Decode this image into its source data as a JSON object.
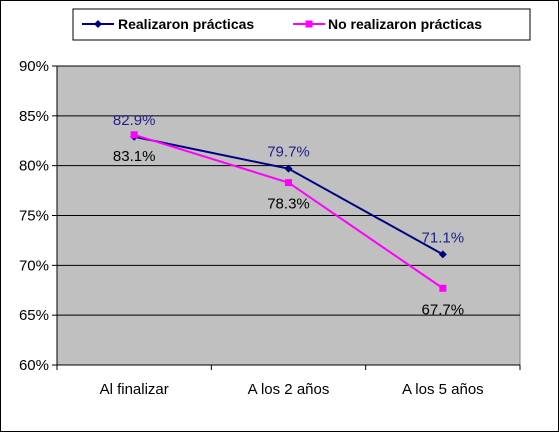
{
  "chart_data": {
    "type": "line",
    "categories": [
      "Al finalizar",
      "A los 2 años",
      "A los 5 años"
    ],
    "series": [
      {
        "name": "Realizaron prácticas",
        "values": [
          82.9,
          79.7,
          71.1
        ],
        "labels": [
          "82.9%",
          "79.7%",
          "71.1%"
        ],
        "color": "#000080",
        "label_color": "#1F1F8C",
        "marker": "diamond"
      },
      {
        "name": "No realizaron prácticas",
        "values": [
          83.1,
          78.3,
          67.7
        ],
        "labels": [
          "83.1%",
          "78.3%",
          "67.7%"
        ],
        "color": "#FF00FF",
        "label_color": "#000000",
        "marker": "square"
      }
    ],
    "ylim": [
      60,
      90
    ],
    "yticks": [
      90,
      85,
      80,
      75,
      70,
      65,
      60
    ],
    "ytick_labels": [
      "90%",
      "85%",
      "80%",
      "75%",
      "70%",
      "65%",
      "60%"
    ],
    "grid": true,
    "plot_background": "#C0C0C0",
    "legend_position": "top"
  }
}
